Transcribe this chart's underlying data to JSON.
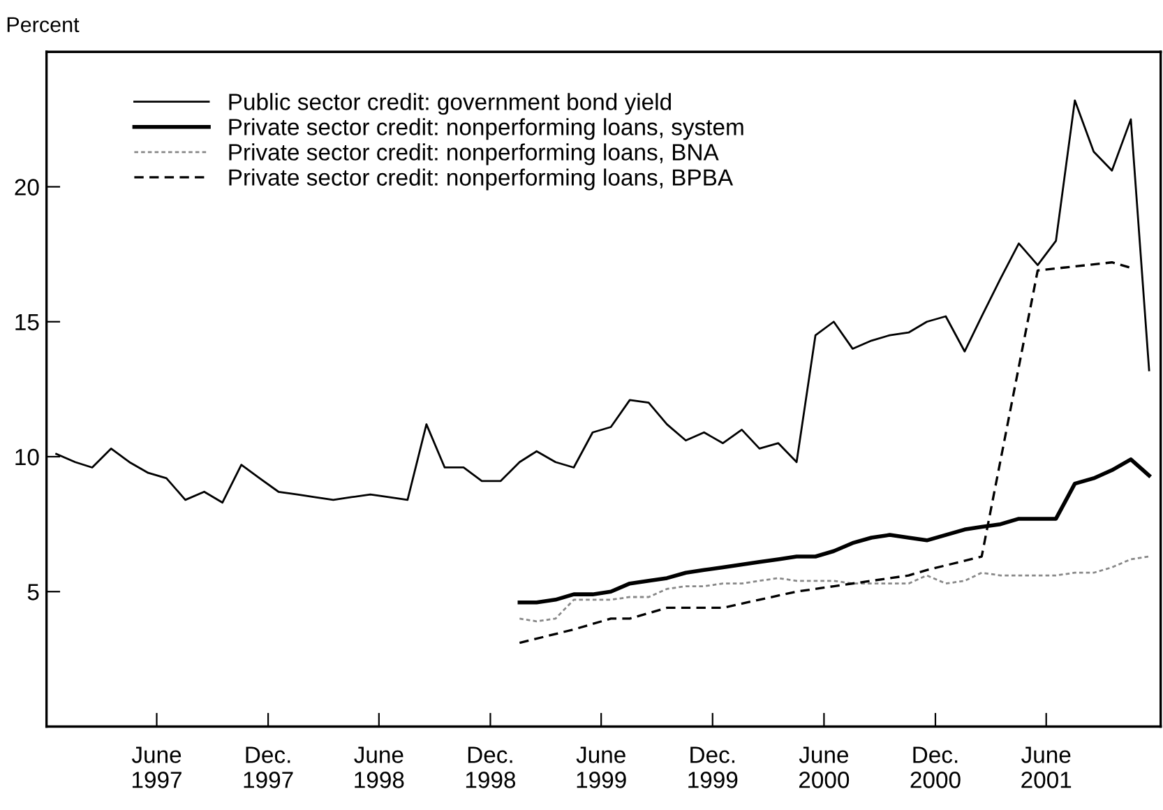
{
  "chart_data": {
    "type": "line",
    "ylabel": "Percent",
    "x": [
      "1997-01",
      "1997-02",
      "1997-03",
      "1997-04",
      "1997-05",
      "1997-06",
      "1997-07",
      "1997-08",
      "1997-09",
      "1997-10",
      "1997-11",
      "1997-12",
      "1998-01",
      "1998-02",
      "1998-03",
      "1998-04",
      "1998-05",
      "1998-06",
      "1998-07",
      "1998-08",
      "1998-09",
      "1998-10",
      "1998-11",
      "1998-12",
      "1999-01",
      "1999-02",
      "1999-03",
      "1999-04",
      "1999-05",
      "1999-06",
      "1999-07",
      "1999-08",
      "1999-09",
      "1999-10",
      "1999-11",
      "1999-12",
      "2000-01",
      "2000-02",
      "2000-03",
      "2000-04",
      "2000-05",
      "2000-06",
      "2000-07",
      "2000-08",
      "2000-09",
      "2000-10",
      "2000-11",
      "2000-12",
      "2001-01",
      "2001-02",
      "2001-03",
      "2001-04",
      "2001-05",
      "2001-06",
      "2001-07",
      "2001-08",
      "2001-09",
      "2001-10",
      "2001-11",
      "2001-12"
    ],
    "series": [
      {
        "name": "Public sector credit: government bond yield",
        "color": "#000000",
        "line_style": "solid",
        "values": [
          10.1,
          9.8,
          9.6,
          10.3,
          9.8,
          9.4,
          9.2,
          8.4,
          8.7,
          8.3,
          9.7,
          9.2,
          8.7,
          8.6,
          8.5,
          8.4,
          8.5,
          8.6,
          8.5,
          8.4,
          11.2,
          9.6,
          9.6,
          9.1,
          9.1,
          9.8,
          10.2,
          9.8,
          9.6,
          10.9,
          11.1,
          12.1,
          12.0,
          11.2,
          10.6,
          10.9,
          10.5,
          11.0,
          10.3,
          10.5,
          9.8,
          14.5,
          15.0,
          14.0,
          14.3,
          14.5,
          14.6,
          15.0,
          15.2,
          13.9,
          15.2,
          16.6,
          17.9,
          17.1,
          18.0,
          23.2,
          21.3,
          20.6,
          22.5,
          13.2
        ]
      },
      {
        "name": "Private sector credit: nonperforming loans, system",
        "color": "#000000",
        "line_style": "solid",
        "values": [
          null,
          null,
          null,
          null,
          null,
          null,
          null,
          null,
          null,
          null,
          null,
          null,
          null,
          null,
          null,
          null,
          null,
          null,
          null,
          null,
          null,
          null,
          null,
          null,
          null,
          4.6,
          4.6,
          4.7,
          4.9,
          4.9,
          5.0,
          5.3,
          5.4,
          5.5,
          5.7,
          5.8,
          5.9,
          6.0,
          6.1,
          6.2,
          6.3,
          6.3,
          6.5,
          6.8,
          7.0,
          7.1,
          7.0,
          6.9,
          7.1,
          7.3,
          7.4,
          7.5,
          7.7,
          7.7,
          7.7,
          9.0,
          9.2,
          9.5,
          9.9,
          9.3
        ]
      },
      {
        "name": "Private sector credit: nonperforming loans, BNA",
        "color": "#888888",
        "line_style": "dotted",
        "values": [
          null,
          null,
          null,
          null,
          null,
          null,
          null,
          null,
          null,
          null,
          null,
          null,
          null,
          null,
          null,
          null,
          null,
          null,
          null,
          null,
          null,
          null,
          null,
          null,
          null,
          4.0,
          3.9,
          4.0,
          4.7,
          4.7,
          4.7,
          4.8,
          4.8,
          5.1,
          5.2,
          5.2,
          5.3,
          5.3,
          5.4,
          5.5,
          5.4,
          5.4,
          5.4,
          5.3,
          5.3,
          5.3,
          5.3,
          5.6,
          5.3,
          5.4,
          5.7,
          5.6,
          5.6,
          5.6,
          5.6,
          5.7,
          5.7,
          5.9,
          6.2,
          6.3
        ]
      },
      {
        "name": "Private sector credit: nonperforming loans, BPBA",
        "color": "#000000",
        "line_style": "dashed",
        "x": [
          "1999-02",
          "1999-05",
          "1999-07",
          "1999-08",
          "1999-10",
          "1999-12",
          "2000-01",
          "2000-03",
          "2000-05",
          "2000-07",
          "2000-09",
          "2000-11",
          "2000-12",
          "2001-03",
          "2001-06",
          "2001-10",
          "2001-11"
        ],
        "values": [
          3.1,
          3.6,
          4.0,
          4.0,
          4.4,
          4.4,
          4.4,
          4.7,
          5.0,
          5.2,
          5.4,
          5.6,
          5.8,
          6.3,
          16.9,
          17.2,
          17.0
        ]
      }
    ],
    "xlim": [
      "1996-12-16",
      "2001-12-20"
    ],
    "xticks": [
      {
        "value": "1997-06-15",
        "label": "June\n1997"
      },
      {
        "value": "1997-12-15",
        "label": "Dec.\n1997"
      },
      {
        "value": "1998-06-15",
        "label": "June\n1998"
      },
      {
        "value": "1998-12-15",
        "label": "Dec.\n1998"
      },
      {
        "value": "1999-06-15",
        "label": "June\n1999"
      },
      {
        "value": "1999-12-15",
        "label": "Dec.\n1999"
      },
      {
        "value": "2000-06-15",
        "label": "June\n2000"
      },
      {
        "value": "2000-12-15",
        "label": "Dec.\n2000"
      },
      {
        "value": "2001-06-15",
        "label": "June\n2001"
      }
    ],
    "ylim": [
      0,
      25
    ],
    "yticks": [
      5,
      10,
      15,
      20
    ],
    "grid": false,
    "legend": "top left",
    "marker": "none"
  }
}
